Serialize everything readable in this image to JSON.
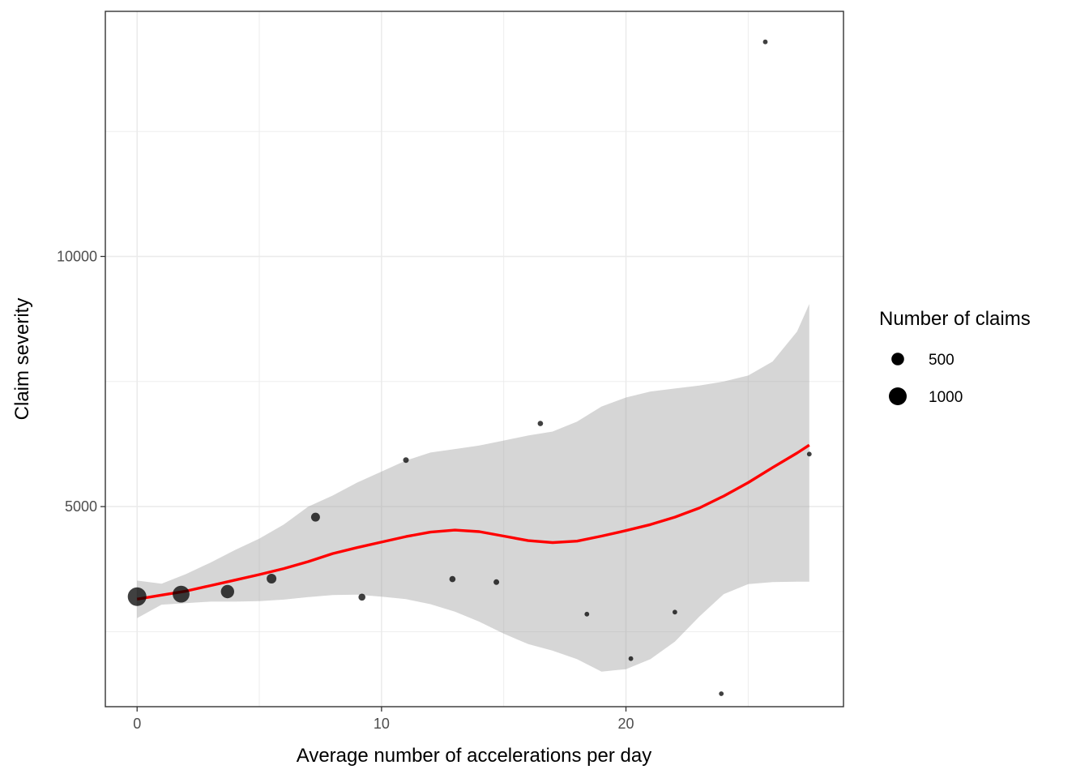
{
  "chart_data": {
    "type": "scatter",
    "xlabel": "Average number of accelerations per day",
    "ylabel": "Claim severity",
    "xlim": [
      -1.3,
      28.9
    ],
    "ylim": [
      1000,
      14900
    ],
    "x_ticks": [
      0,
      10,
      20
    ],
    "x_tick_labels": [
      "0",
      "10",
      "20"
    ],
    "x_minor_ticks": [
      5,
      15,
      25
    ],
    "y_ticks": [
      5000,
      10000
    ],
    "y_tick_labels": [
      "5000",
      "10000"
    ],
    "y_minor_ticks": [
      2500,
      7500,
      12500
    ],
    "grid": true,
    "legend_position": "right",
    "legend": {
      "title": "Number of claims",
      "entries": [
        {
          "label": "500",
          "value": 500
        },
        {
          "label": "1000",
          "value": 1000
        }
      ]
    },
    "points": [
      {
        "x": 0.0,
        "y": 3200,
        "n": 1100
      },
      {
        "x": 1.8,
        "y": 3250,
        "n": 900
      },
      {
        "x": 3.7,
        "y": 3300,
        "n": 550
      },
      {
        "x": 5.5,
        "y": 3560,
        "n": 300
      },
      {
        "x": 7.3,
        "y": 4790,
        "n": 250
      },
      {
        "x": 9.2,
        "y": 3190,
        "n": 150
      },
      {
        "x": 11.0,
        "y": 5930,
        "n": 100
      },
      {
        "x": 12.9,
        "y": 3550,
        "n": 120
      },
      {
        "x": 14.7,
        "y": 3490,
        "n": 100
      },
      {
        "x": 16.5,
        "y": 6660,
        "n": 90
      },
      {
        "x": 18.4,
        "y": 2850,
        "n": 70
      },
      {
        "x": 20.2,
        "y": 1960,
        "n": 70
      },
      {
        "x": 22.0,
        "y": 2890,
        "n": 70
      },
      {
        "x": 23.9,
        "y": 1260,
        "n": 70
      },
      {
        "x": 25.7,
        "y": 14290,
        "n": 70
      },
      {
        "x": 27.5,
        "y": 6050,
        "n": 70
      }
    ],
    "smooth": {
      "color": "#ff0000",
      "x": [
        0,
        1,
        2,
        3,
        4,
        5,
        6,
        7,
        8,
        9,
        10,
        11,
        12,
        13,
        14,
        15,
        16,
        17,
        18,
        19,
        20,
        21,
        22,
        23,
        24,
        25,
        26,
        27,
        27.5
      ],
      "y": [
        3150,
        3230,
        3310,
        3420,
        3530,
        3640,
        3760,
        3900,
        4060,
        4180,
        4290,
        4400,
        4490,
        4530,
        4500,
        4410,
        4320,
        4280,
        4310,
        4410,
        4520,
        4640,
        4790,
        4970,
        5210,
        5480,
        5780,
        6070,
        6230
      ],
      "band_lower": [
        2770,
        3040,
        3070,
        3100,
        3100,
        3110,
        3140,
        3190,
        3230,
        3240,
        3200,
        3150,
        3050,
        2900,
        2700,
        2460,
        2250,
        2120,
        1950,
        1700,
        1750,
        1950,
        2300,
        2800,
        3250,
        3450,
        3490,
        3500,
        3500
      ],
      "band_upper": [
        3520,
        3460,
        3650,
        3880,
        4130,
        4360,
        4640,
        5000,
        5220,
        5480,
        5700,
        5920,
        6080,
        6150,
        6220,
        6320,
        6420,
        6500,
        6700,
        7000,
        7180,
        7300,
        7360,
        7420,
        7500,
        7620,
        7900,
        8500,
        9050
      ]
    }
  }
}
